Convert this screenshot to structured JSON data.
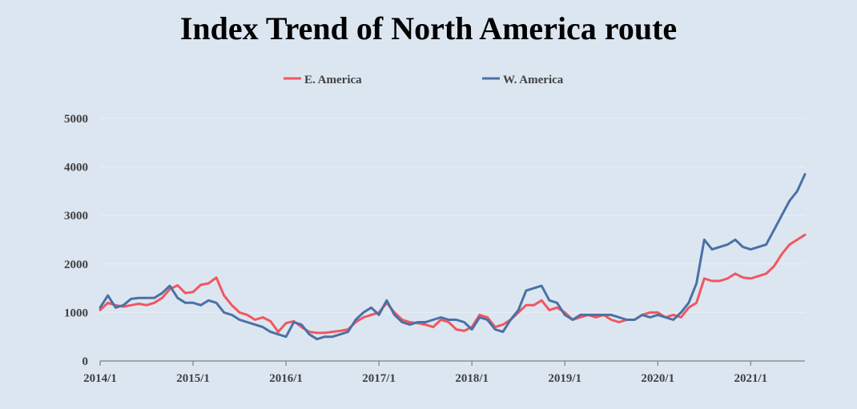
{
  "chart_data": {
    "type": "line",
    "title": "Index Trend of North America route",
    "xlabel": "",
    "ylabel": "",
    "ylim": [
      0,
      5000
    ],
    "y_ticks": [
      "0",
      "1000",
      "2000",
      "3000",
      "4000",
      "5000"
    ],
    "x_tick_labels": [
      "2014/1",
      "2015/1",
      "2016/1",
      "2017/1",
      "2018/1",
      "2019/1",
      "2020/1",
      "2021/1"
    ],
    "x_start": "2014-01",
    "x_end": "2021-08",
    "grid": true,
    "legend_position": "top",
    "x": [
      "2014-01",
      "2014-02",
      "2014-03",
      "2014-04",
      "2014-05",
      "2014-06",
      "2014-07",
      "2014-08",
      "2014-09",
      "2014-10",
      "2014-11",
      "2014-12",
      "2015-01",
      "2015-02",
      "2015-03",
      "2015-04",
      "2015-05",
      "2015-06",
      "2015-07",
      "2015-08",
      "2015-09",
      "2015-10",
      "2015-11",
      "2015-12",
      "2016-01",
      "2016-02",
      "2016-03",
      "2016-04",
      "2016-05",
      "2016-06",
      "2016-07",
      "2016-08",
      "2016-09",
      "2016-10",
      "2016-11",
      "2016-12",
      "2017-01",
      "2017-02",
      "2017-03",
      "2017-04",
      "2017-05",
      "2017-06",
      "2017-07",
      "2017-08",
      "2017-09",
      "2017-10",
      "2017-11",
      "2017-12",
      "2018-01",
      "2018-02",
      "2018-03",
      "2018-04",
      "2018-05",
      "2018-06",
      "2018-07",
      "2018-08",
      "2018-09",
      "2018-10",
      "2018-11",
      "2018-12",
      "2019-01",
      "2019-02",
      "2019-03",
      "2019-04",
      "2019-05",
      "2019-06",
      "2019-07",
      "2019-08",
      "2019-09",
      "2019-10",
      "2019-11",
      "2019-12",
      "2020-01",
      "2020-02",
      "2020-03",
      "2020-04",
      "2020-05",
      "2020-06",
      "2020-07",
      "2020-08",
      "2020-09",
      "2020-10",
      "2020-11",
      "2020-12",
      "2021-01",
      "2021-02",
      "2021-03",
      "2021-04",
      "2021-05",
      "2021-06",
      "2021-07",
      "2021-08"
    ],
    "series": [
      {
        "name": "E. America",
        "color": "#f0575f",
        "values": [
          1050,
          1200,
          1150,
          1120,
          1150,
          1180,
          1150,
          1200,
          1300,
          1480,
          1560,
          1400,
          1420,
          1570,
          1600,
          1720,
          1350,
          1150,
          1000,
          950,
          850,
          900,
          820,
          600,
          780,
          820,
          700,
          600,
          580,
          580,
          600,
          620,
          650,
          800,
          900,
          950,
          1000,
          1200,
          1000,
          850,
          800,
          780,
          750,
          700,
          850,
          800,
          650,
          620,
          700,
          950,
          900,
          700,
          750,
          850,
          1000,
          1150,
          1150,
          1250,
          1050,
          1100,
          1000,
          850,
          900,
          950,
          900,
          950,
          850,
          800,
          850,
          850,
          950,
          1000,
          1000,
          900,
          950,
          900,
          1100,
          1200,
          1700,
          1650,
          1650,
          1700,
          1800,
          1720,
          1700,
          1750,
          1800,
          1950,
          2200,
          2400,
          2500,
          2600
        ]
      },
      {
        "name": "W. America",
        "color": "#4a71a5",
        "values": [
          1100,
          1350,
          1100,
          1150,
          1280,
          1300,
          1300,
          1300,
          1400,
          1550,
          1300,
          1200,
          1200,
          1150,
          1250,
          1200,
          1000,
          950,
          850,
          800,
          750,
          700,
          600,
          550,
          500,
          800,
          750,
          550,
          450,
          500,
          500,
          550,
          600,
          850,
          1000,
          1100,
          950,
          1250,
          950,
          800,
          750,
          800,
          800,
          850,
          900,
          850,
          850,
          800,
          650,
          900,
          850,
          650,
          600,
          850,
          1050,
          1450,
          1500,
          1550,
          1250,
          1200,
          950,
          850,
          950,
          950,
          950,
          950,
          950,
          900,
          850,
          850,
          950,
          900,
          950,
          900,
          850,
          1000,
          1200,
          1600,
          2500,
          2300,
          2350,
          2400,
          2500,
          2350,
          2300,
          2350,
          2400,
          2700,
          3000,
          3300,
          3500,
          3850
        ]
      }
    ]
  }
}
